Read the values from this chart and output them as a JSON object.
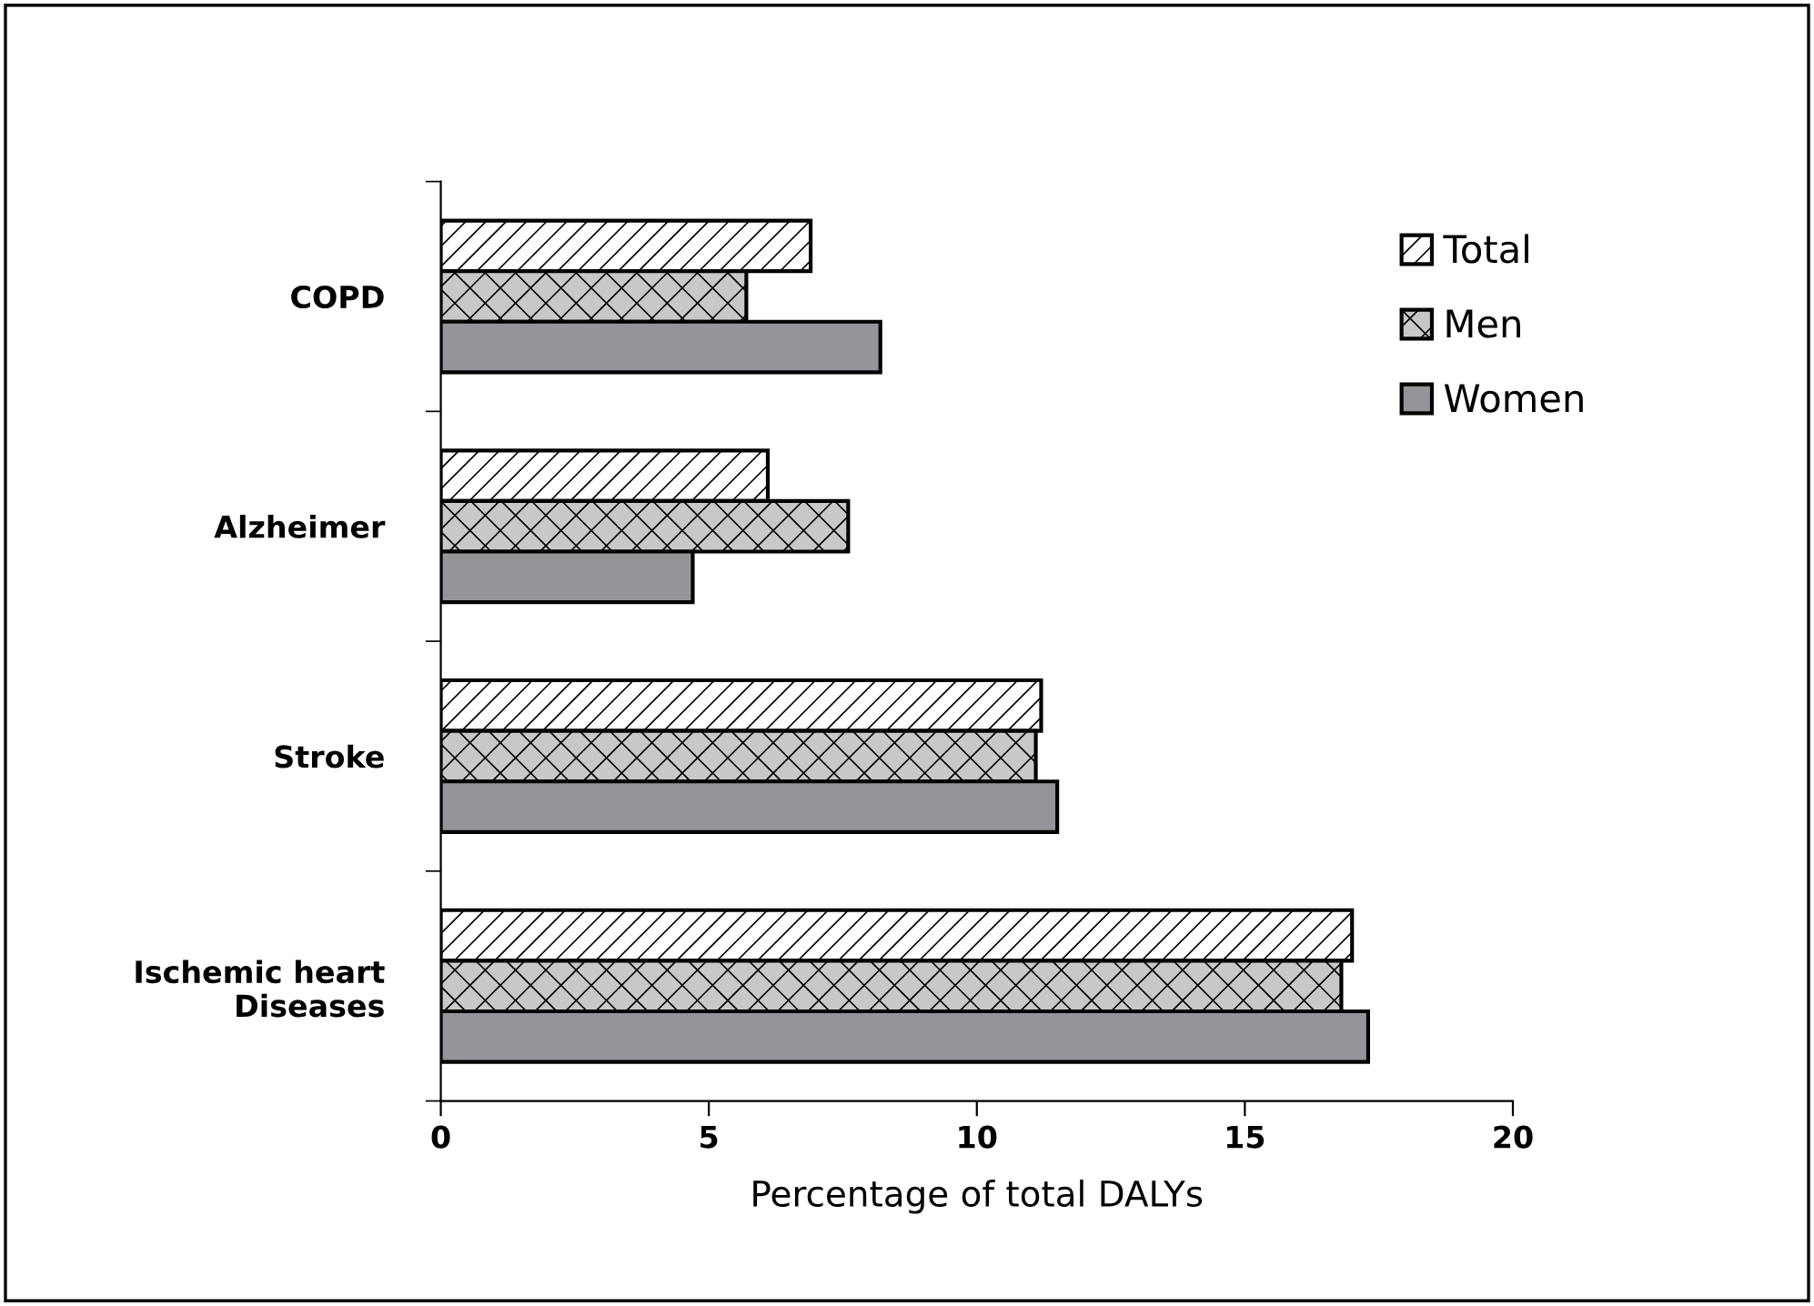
{
  "chart_data": {
    "type": "bar",
    "orientation": "horizontal",
    "xlabel": "Percentage of total DALYs",
    "categories": [
      "COPD",
      "Alzheimer",
      "Stroke",
      "Ischemic heart\nDiseases"
    ],
    "series": [
      {
        "name": "Total",
        "color": "#ffffff",
        "values": [
          6.9,
          6.1,
          11.2,
          17.0
        ]
      },
      {
        "name": "Men",
        "color": "#c8c8c8",
        "values": [
          5.7,
          7.6,
          11.1,
          16.8
        ]
      },
      {
        "name": "Women",
        "color": "#939598",
        "values": [
          8.2,
          4.7,
          11.5,
          17.3
        ]
      }
    ],
    "xlim": [
      0,
      20
    ],
    "xticks": [
      0,
      5,
      10,
      15,
      20
    ],
    "grid": false,
    "legend": "top right"
  }
}
